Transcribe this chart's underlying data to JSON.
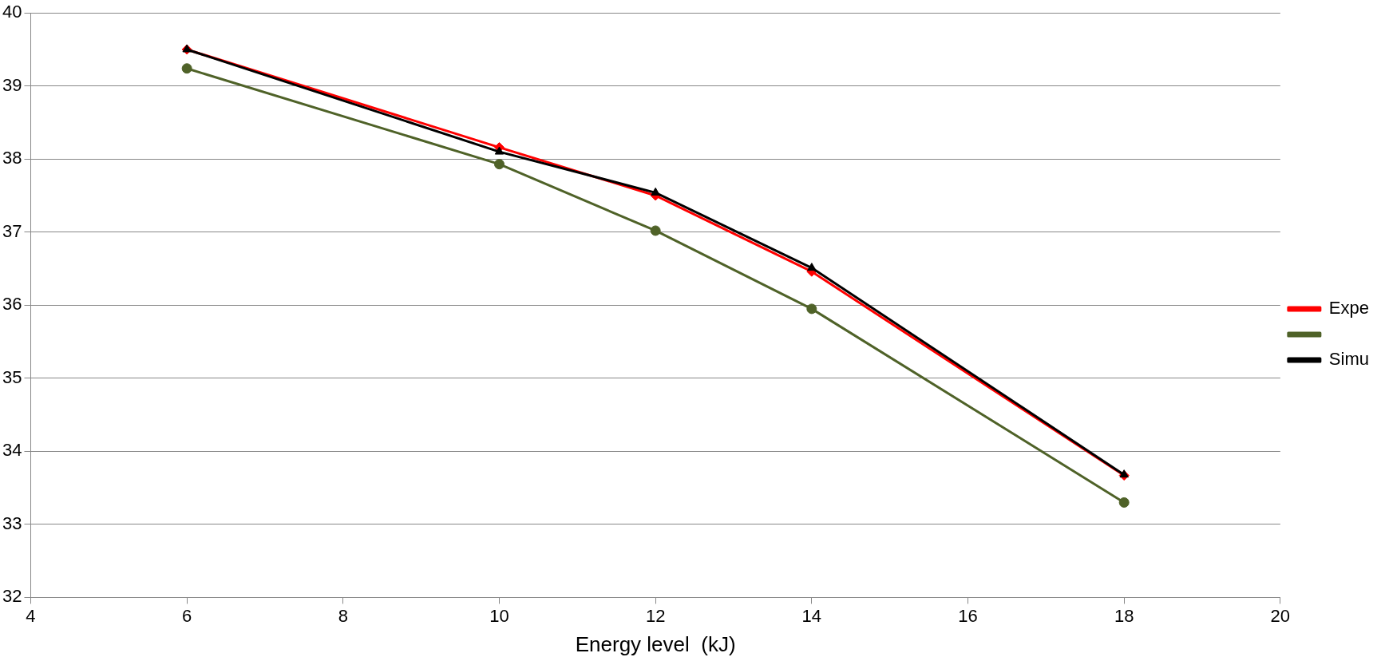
{
  "chart_data": {
    "type": "line",
    "xlabel": "Energy level  (kJ)",
    "x": [
      6,
      10,
      12,
      14,
      18
    ],
    "series": [
      {
        "name": "Expe",
        "color": "#ff0000",
        "marker": "diamond",
        "values": [
          39.5,
          38.16,
          37.5,
          36.46,
          33.67
        ]
      },
      {
        "color": "#4f6228",
        "marker": "circle",
        "values": [
          39.24,
          37.93,
          37.02,
          35.95,
          33.3
        ]
      },
      {
        "name": "Simu",
        "color": "#000000",
        "marker": "triangle",
        "values": [
          39.5,
          38.1,
          37.54,
          36.51,
          33.68
        ]
      }
    ],
    "xlim": [
      4,
      20
    ],
    "xticks": [
      4,
      6,
      8,
      10,
      12,
      14,
      16,
      18,
      20
    ],
    "ylim": [
      32,
      40
    ],
    "yticks": [
      32,
      33,
      34,
      35,
      36,
      37,
      38,
      39,
      40
    ],
    "grid": "y",
    "legend": "right"
  }
}
